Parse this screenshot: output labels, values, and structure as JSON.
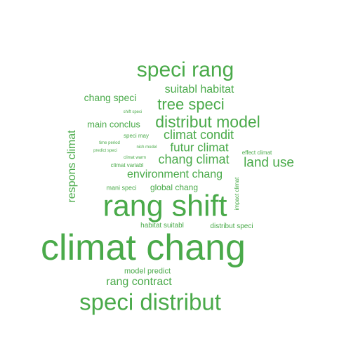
{
  "cloud": {
    "color": "#4aaa4a",
    "words": [
      {
        "text": "climat chang"
      },
      {
        "text": "rang shift"
      },
      {
        "text": "speci distribut"
      },
      {
        "text": "speci rang"
      },
      {
        "text": "distribut model"
      },
      {
        "text": "tree speci"
      },
      {
        "text": "land use"
      },
      {
        "text": "suitabl habitat"
      },
      {
        "text": "climat condit"
      },
      {
        "text": "chang climat"
      },
      {
        "text": "futur climat"
      },
      {
        "text": "environment chang"
      },
      {
        "text": "respons climat"
      },
      {
        "text": "rang contract"
      },
      {
        "text": "chang speci"
      },
      {
        "text": "main conclus"
      },
      {
        "text": "global chang"
      },
      {
        "text": "model predict"
      },
      {
        "text": "habitat suitabl"
      },
      {
        "text": "distribut speci"
      },
      {
        "text": "mani speci"
      },
      {
        "text": "effect climat"
      },
      {
        "text": "impact climat"
      },
      {
        "text": "climat variabl"
      },
      {
        "text": "speci may"
      },
      {
        "text": "shift speci"
      },
      {
        "text": "time period"
      },
      {
        "text": "predict speci"
      },
      {
        "text": "nich model"
      },
      {
        "text": "climat warm"
      }
    ]
  }
}
